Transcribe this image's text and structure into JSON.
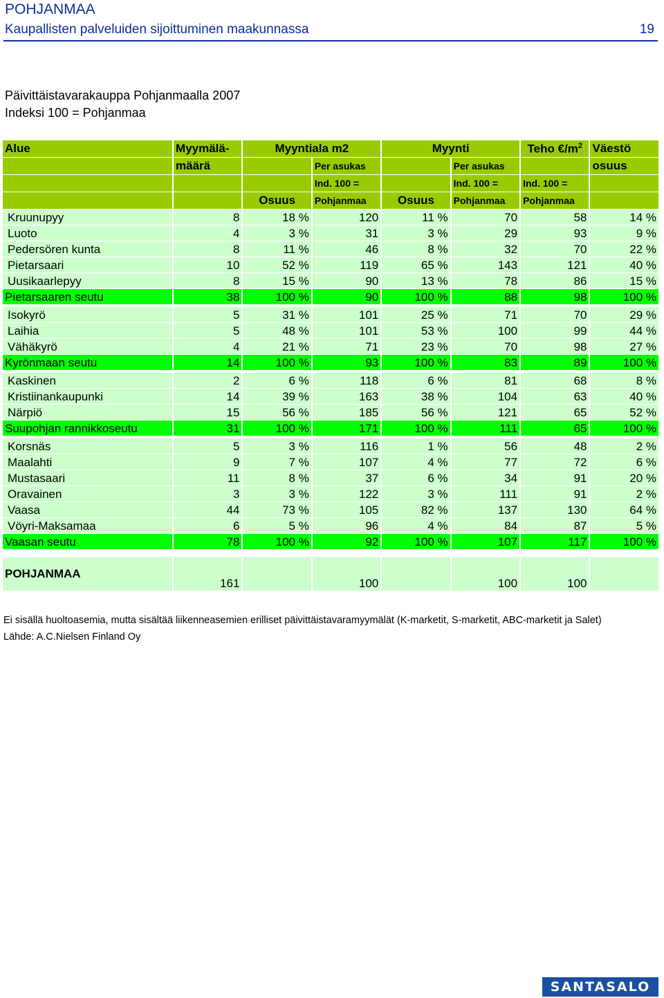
{
  "header": {
    "title": "POHJANMAA",
    "subtitle": "Kaupallisten palveluiden sijoittuminen maakunnassa",
    "page_number": "19"
  },
  "document": {
    "title": "Päivittäistavarakauppa Pohjanmaalla 2007",
    "subtitle": "Indeksi 100 = Pohjanmaa"
  },
  "table": {
    "headers": {
      "area": "Alue",
      "stores_1": "Myymälä-",
      "stores_2": "määrä",
      "sales_area": "Myyntiala m2",
      "sales": "Myynti",
      "efficiency_base": "Teho €/m",
      "efficiency_sup": "2",
      "population_1": "Väestö",
      "population_2": "osuus",
      "per_capita": "Per asukas",
      "index_1": "Ind. 100 =",
      "index_2": "Pohjanmaa",
      "share": "Osuus"
    },
    "rows": [
      {
        "type": "d",
        "cells": [
          "Kruunupyy",
          "8",
          "18 %",
          "120",
          "11 %",
          "70",
          "58",
          "14 %"
        ]
      },
      {
        "type": "d",
        "cells": [
          "Luoto",
          "4",
          "3 %",
          "31",
          "3 %",
          "29",
          "93",
          "9 %"
        ]
      },
      {
        "type": "d",
        "cells": [
          "Pedersören kunta",
          "8",
          "11 %",
          "46",
          "8 %",
          "32",
          "70",
          "22 %"
        ]
      },
      {
        "type": "d",
        "cells": [
          "Pietarsaari",
          "10",
          "52 %",
          "119",
          "65 %",
          "143",
          "121",
          "40 %"
        ]
      },
      {
        "type": "d",
        "cells": [
          "Uusikaarlepyy",
          "8",
          "15 %",
          "90",
          "13 %",
          "78",
          "86",
          "15 %"
        ]
      },
      {
        "type": "s",
        "cells": [
          "Pietarsaaren seutu",
          "38",
          "100 %",
          "90",
          "100 %",
          "88",
          "98",
          "100 %"
        ]
      },
      {
        "type": "d",
        "cells": [
          "Isokyrö",
          "5",
          "31 %",
          "101",
          "25 %",
          "71",
          "70",
          "29 %"
        ]
      },
      {
        "type": "d",
        "cells": [
          "Laihia",
          "5",
          "48 %",
          "101",
          "53 %",
          "100",
          "99",
          "44 %"
        ]
      },
      {
        "type": "d",
        "cells": [
          "Vähäkyrö",
          "4",
          "21 %",
          "71",
          "23 %",
          "70",
          "98",
          "27 %"
        ]
      },
      {
        "type": "s",
        "cells": [
          "Kyrönmaan seutu",
          "14",
          "100 %",
          "93",
          "100 %",
          "83",
          "89",
          "100 %"
        ]
      },
      {
        "type": "d",
        "cells": [
          "Kaskinen",
          "2",
          "6 %",
          "118",
          "6 %",
          "81",
          "68",
          "8 %"
        ]
      },
      {
        "type": "d",
        "cells": [
          "Kristiinankaupunki",
          "14",
          "39 %",
          "163",
          "38 %",
          "104",
          "63",
          "40 %"
        ]
      },
      {
        "type": "d",
        "cells": [
          "Närpiö",
          "15",
          "56 %",
          "185",
          "56 %",
          "121",
          "65",
          "52 %"
        ]
      },
      {
        "type": "s",
        "cells": [
          "Suupohjan rannikkoseutu",
          "31",
          "100 %",
          "171",
          "100 %",
          "111",
          "65",
          "100 %"
        ]
      },
      {
        "type": "d",
        "cells": [
          "Korsnäs",
          "5",
          "3 %",
          "116",
          "1 %",
          "56",
          "48",
          "2 %"
        ]
      },
      {
        "type": "d",
        "cells": [
          "Maalahti",
          "9",
          "7 %",
          "107",
          "4 %",
          "77",
          "72",
          "6 %"
        ]
      },
      {
        "type": "d",
        "cells": [
          "Mustasaari",
          "11",
          "8 %",
          "37",
          "6 %",
          "34",
          "91",
          "20 %"
        ]
      },
      {
        "type": "d",
        "cells": [
          "Oravainen",
          "3",
          "3 %",
          "122",
          "3 %",
          "111",
          "91",
          "2 %"
        ]
      },
      {
        "type": "d",
        "cells": [
          "Vaasa",
          "44",
          "73 %",
          "105",
          "82 %",
          "137",
          "130",
          "64 %"
        ]
      },
      {
        "type": "d",
        "cells": [
          "Vöyri-Maksamaa",
          "6",
          "5 %",
          "96",
          "4 %",
          "84",
          "87",
          "5 %"
        ]
      },
      {
        "type": "s",
        "cells": [
          "Vaasan seutu",
          "78",
          "100 %",
          "92",
          "100 %",
          "107",
          "117",
          "100 %"
        ]
      }
    ],
    "total": [
      "POHJANMAA",
      "161",
      "",
      "100",
      "",
      "100",
      "100",
      ""
    ]
  },
  "footer": {
    "note": "Ei sisällä huoltoasemia, mutta sisältää liikenneasemien erilliset päivittäistavaramyymälät (K-marketit, S-marketit, ABC-marketit ja Salet)",
    "source": "Lähde: A.C.Nielsen Finland Oy",
    "logo": "SANTASALO"
  },
  "colors": {
    "header_blue": "#0b2d9a",
    "header_green": "#99cc00",
    "row_light": "#ccffcc",
    "row_subtotal": "#00ff00",
    "logo_blue": "#1a4fa3"
  }
}
